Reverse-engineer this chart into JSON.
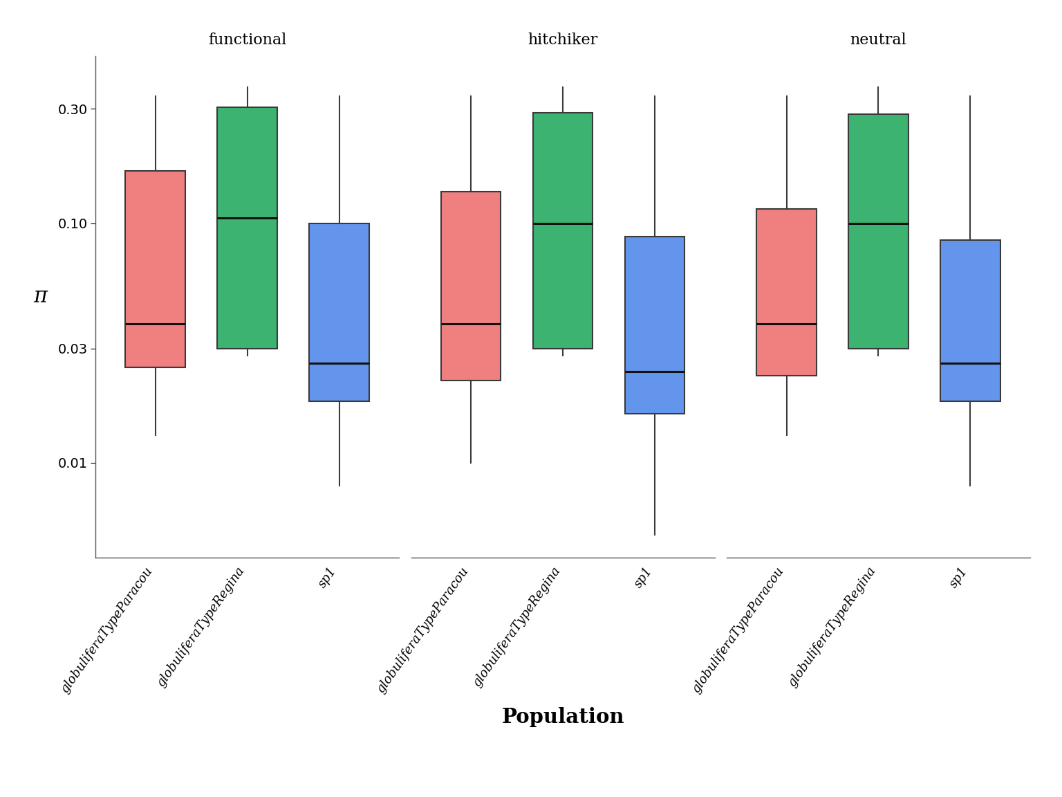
{
  "facets": [
    "functional",
    "hitchiker",
    "neutral"
  ],
  "populations": [
    "globuliferaTypeParacou",
    "globuliferaTypeRegina",
    "sp1"
  ],
  "colors": {
    "globuliferaTypeParacou": "#F08080",
    "globuliferaTypeRegina": "#3CB371",
    "sp1": "#6495ED"
  },
  "box_data": {
    "functional": {
      "globuliferaTypeParacou": {
        "whislo": 0.013,
        "q1": 0.025,
        "med": 0.038,
        "q3": 0.165,
        "whishi": 0.34
      },
      "globuliferaTypeRegina": {
        "whislo": 0.028,
        "q1": 0.03,
        "med": 0.105,
        "q3": 0.305,
        "whishi": 0.37
      },
      "sp1": {
        "whislo": 0.008,
        "q1": 0.018,
        "med": 0.026,
        "q3": 0.1,
        "whishi": 0.34
      }
    },
    "hitchiker": {
      "globuliferaTypeParacou": {
        "whislo": 0.01,
        "q1": 0.022,
        "med": 0.038,
        "q3": 0.135,
        "whishi": 0.34
      },
      "globuliferaTypeRegina": {
        "whislo": 0.028,
        "q1": 0.03,
        "med": 0.1,
        "q3": 0.29,
        "whishi": 0.37
      },
      "sp1": {
        "whislo": 0.005,
        "q1": 0.016,
        "med": 0.024,
        "q3": 0.088,
        "whishi": 0.34
      }
    },
    "neutral": {
      "globuliferaTypeParacou": {
        "whislo": 0.013,
        "q1": 0.023,
        "med": 0.038,
        "q3": 0.115,
        "whishi": 0.34
      },
      "globuliferaTypeRegina": {
        "whislo": 0.028,
        "q1": 0.03,
        "med": 0.1,
        "q3": 0.285,
        "whishi": 0.37
      },
      "sp1": {
        "whislo": 0.008,
        "q1": 0.018,
        "med": 0.026,
        "q3": 0.085,
        "whishi": 0.34
      }
    }
  },
  "yticks": [
    0.01,
    0.03,
    0.1,
    0.3
  ],
  "ytick_labels": [
    "0.01",
    "0.03",
    "0.10",
    "0.30"
  ],
  "ylim": [
    0.004,
    0.5
  ],
  "ylabel": "π",
  "xlabel": "Population",
  "background_color": "#ffffff",
  "box_width": 0.65,
  "linewidth": 1.5,
  "facet_title_fontsize": 16,
  "axis_label_fontsize": 18,
  "tick_label_fontsize": 14,
  "xtick_fontsize": 13
}
